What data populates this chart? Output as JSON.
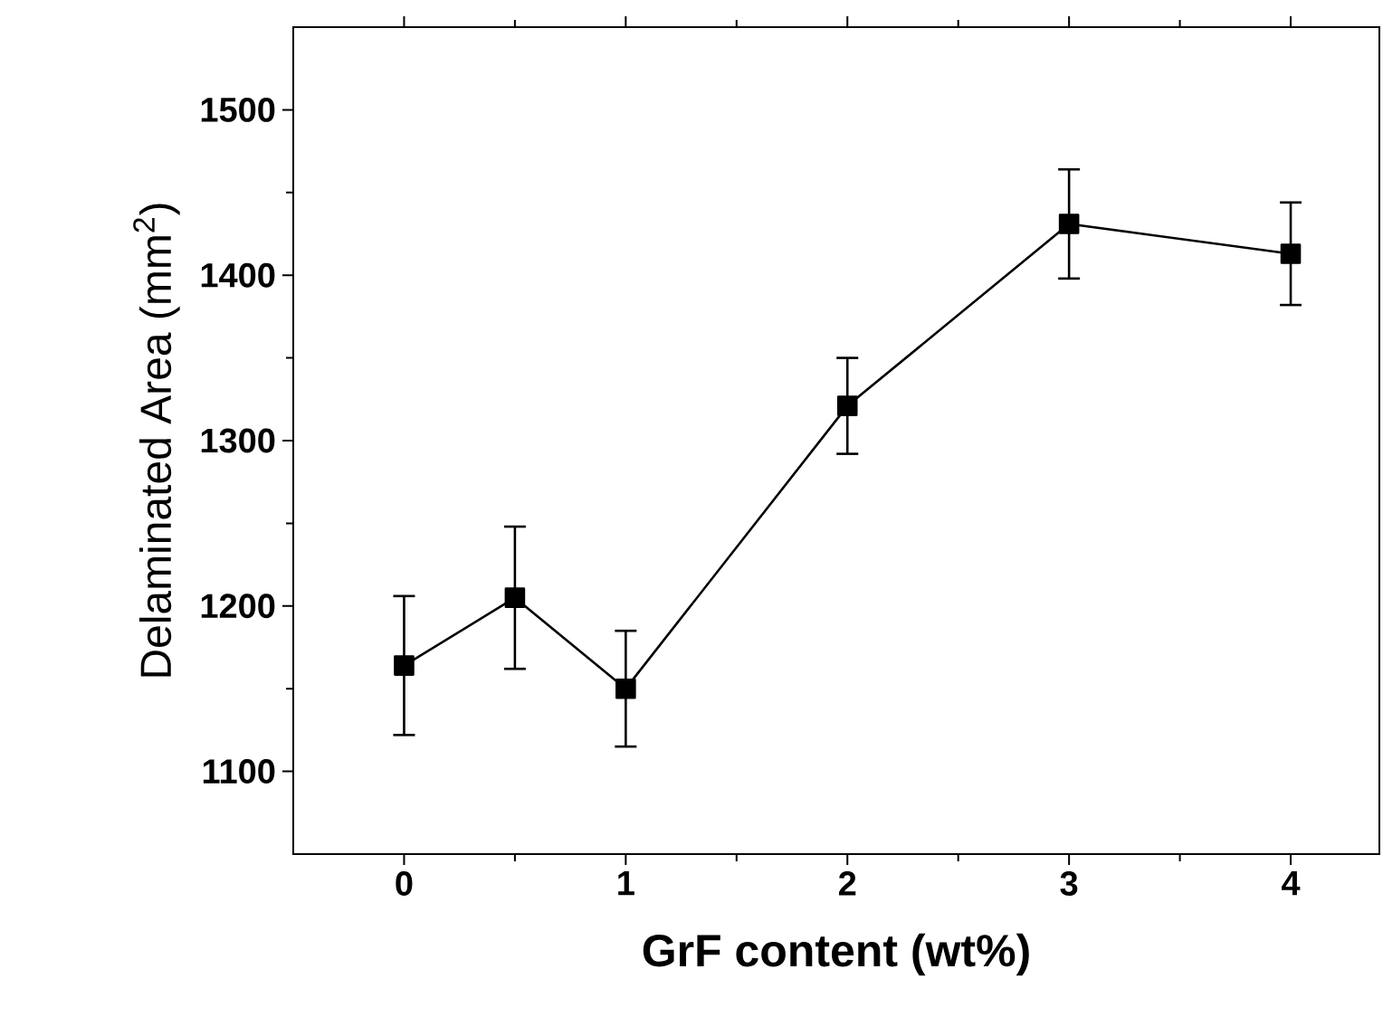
{
  "chart_data": {
    "type": "line",
    "xlabel": "GrF content (wt%)",
    "ylabel": "Delaminated Area (mm$^{2}$)",
    "x": [
      0,
      0.5,
      1,
      2,
      3,
      4
    ],
    "values": [
      1164,
      1205,
      1150,
      1321,
      1431,
      1413
    ],
    "errors": [
      42,
      43,
      35,
      29,
      33,
      31
    ],
    "color": "#000000",
    "marker": "square",
    "line_style": "solid",
    "grid": false,
    "xlim": [
      -0.5,
      4.4
    ],
    "xticks": [
      0,
      1,
      2,
      3,
      4
    ],
    "ylim": [
      1050,
      1550
    ],
    "yticks": [
      1100,
      1200,
      1300,
      1400,
      1500
    ]
  }
}
